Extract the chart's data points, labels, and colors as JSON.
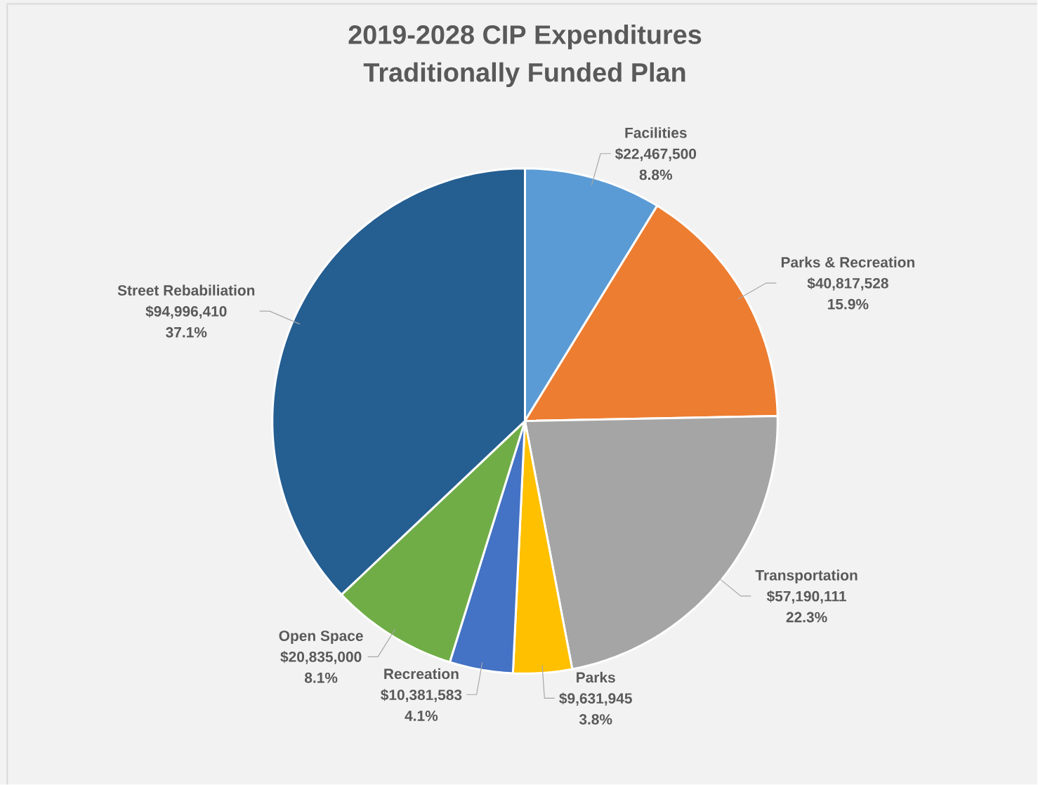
{
  "chart_data": {
    "type": "pie",
    "title": "2019-2028 CIP Expenditures",
    "subtitle": "Traditionally Funded Plan",
    "categories": [
      "Facilities",
      "Parks & Recreation",
      "Transportation",
      "Parks",
      "Recreation",
      "Open Space",
      "Street Rebabiliation"
    ],
    "values": [
      22467500,
      40817528,
      57190111,
      9631945,
      10381583,
      20835000,
      94996410
    ],
    "value_labels": [
      "$22,467,500",
      "$40,817,528",
      "$57,190,111",
      "$9,631,945",
      "$10,381,583",
      "$20,835,000",
      "$94,996,410"
    ],
    "colors": [
      "#5b9bd5",
      "#ed7d31",
      "#a5a5a5",
      "#ffc000",
      "#4472c4",
      "#70ad47",
      "#255e91"
    ],
    "annotations": [
      {
        "text": "8.8%",
        "x": "Facilities"
      },
      {
        "text": "15.9%",
        "x": "Parks & Recreation"
      },
      {
        "text": "22.3%",
        "x": "Transportation"
      },
      {
        "text": "3.8%",
        "x": "Parks"
      },
      {
        "text": "4.1%",
        "x": "Recreation"
      },
      {
        "text": "8.1%",
        "x": "Open Space"
      },
      {
        "text": "37.1%",
        "x": "Street Rebabiliation"
      }
    ]
  }
}
